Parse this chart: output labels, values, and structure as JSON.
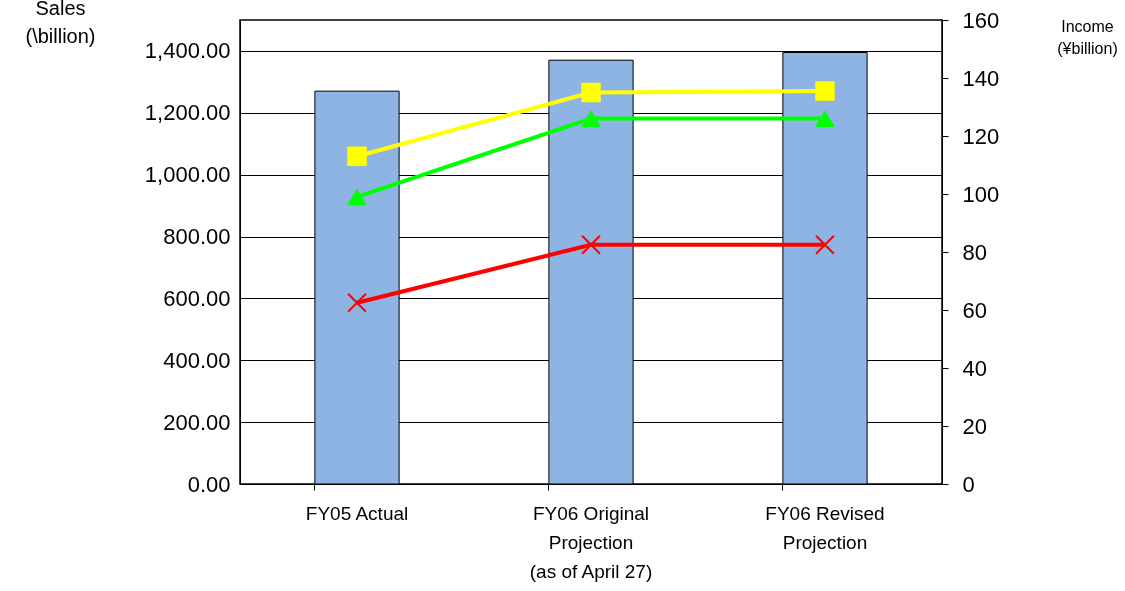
{
  "chart_data": {
    "type": "bar",
    "categories": [
      "FY05 Actual",
      "FY06 Original\nProjection\n(as of April 27)",
      "FY06 Revised\nProjection"
    ],
    "ylabel": "Sales\n(\\billion)",
    "y2label": "Income\n(¥billion)",
    "ylim": [
      0,
      1500
    ],
    "yticks": [
      {
        "value": 0,
        "label": "0.00"
      },
      {
        "value": 200,
        "label": "200.00"
      },
      {
        "value": 400,
        "label": "400.00"
      },
      {
        "value": 600,
        "label": "600.00"
      },
      {
        "value": 800,
        "label": "800.00"
      },
      {
        "value": 1000,
        "label": "1,000.00"
      },
      {
        "value": 1200,
        "label": "1,200.00"
      },
      {
        "value": 1400,
        "label": "1,400.00"
      }
    ],
    "y2lim": [
      0,
      160
    ],
    "y2ticks": [
      0,
      20,
      40,
      60,
      80,
      100,
      120,
      140,
      160
    ],
    "grid": "y",
    "series": [
      {
        "color": "#8db4e2",
        "values": [
          1270,
          1370,
          1395
        ]
      },
      {
        "type": "line",
        "axis": "y2",
        "color": "#ffff00",
        "marker": "square",
        "values": [
          113,
          135,
          135.5
        ]
      },
      {
        "type": "line",
        "axis": "y2",
        "color": "#00ff00",
        "marker": "triangle",
        "values": [
          99,
          126,
          126
        ]
      },
      {
        "type": "line",
        "axis": "y2",
        "color": "#ff0000",
        "marker": "cross",
        "values": [
          62.5,
          82.5,
          82.5
        ]
      }
    ]
  }
}
